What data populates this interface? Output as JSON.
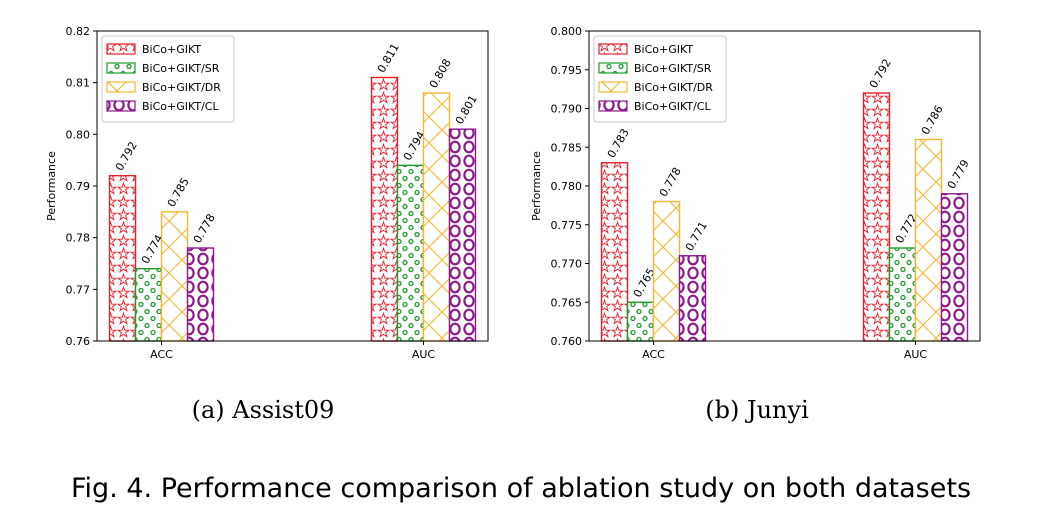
{
  "figure": {
    "caption": "Fig. 4.  Performance comparison of ablation study on both datasets"
  },
  "chart_data": [
    {
      "type": "bar",
      "subcaption": "(a)  Assist09",
      "ylabel": "Performance",
      "categories": [
        "ACC",
        "AUC"
      ],
      "ylim": [
        0.76,
        0.82
      ],
      "yticks": [
        "0.76",
        "0.77",
        "0.78",
        "0.79",
        "0.80",
        "0.81",
        "0.82"
      ],
      "grid": false,
      "legend_position": "top-left",
      "series": [
        {
          "name": "BiCo+GIKT",
          "values": [
            0.792,
            0.811
          ],
          "labels": [
            "0.792",
            "0.811"
          ],
          "color": "#e8202a",
          "pattern": "stars"
        },
        {
          "name": "BiCo+GIKT/SR",
          "values": [
            0.774,
            0.794
          ],
          "labels": [
            "0.774",
            "0.794"
          ],
          "color": "#1f9a2e",
          "pattern": "dots"
        },
        {
          "name": "BiCo+GIKT/DR",
          "values": [
            0.785,
            0.808
          ],
          "labels": [
            "0.785",
            "0.808"
          ],
          "color": "#f5b731",
          "pattern": "crosshatch"
        },
        {
          "name": "BiCo+GIKT/CL",
          "values": [
            0.778,
            0.801
          ],
          "labels": [
            "0.778",
            "0.801"
          ],
          "color": "#8e1a8c",
          "pattern": "circles"
        }
      ]
    },
    {
      "type": "bar",
      "subcaption": "(b)  Junyi",
      "ylabel": "Performance",
      "categories": [
        "ACC",
        "AUC"
      ],
      "ylim": [
        0.76,
        0.8
      ],
      "yticks": [
        "0.760",
        "0.765",
        "0.770",
        "0.775",
        "0.780",
        "0.785",
        "0.790",
        "0.795",
        "0.800"
      ],
      "grid": false,
      "legend_position": "top-left",
      "series": [
        {
          "name": "BiCo+GIKT",
          "values": [
            0.783,
            0.792
          ],
          "labels": [
            "0.783",
            "0.792"
          ],
          "color": "#e8202a",
          "pattern": "stars"
        },
        {
          "name": "BiCo+GIKT/SR",
          "values": [
            0.765,
            0.772
          ],
          "labels": [
            "0.765",
            "0.772"
          ],
          "color": "#1f9a2e",
          "pattern": "dots"
        },
        {
          "name": "BiCo+GIKT/DR",
          "values": [
            0.778,
            0.786
          ],
          "labels": [
            "0.778",
            "0.786"
          ],
          "color": "#f5b731",
          "pattern": "crosshatch"
        },
        {
          "name": "BiCo+GIKT/CL",
          "values": [
            0.771,
            0.779
          ],
          "labels": [
            "0.771",
            "0.779"
          ],
          "color": "#8e1a8c",
          "pattern": "circles"
        }
      ]
    }
  ]
}
